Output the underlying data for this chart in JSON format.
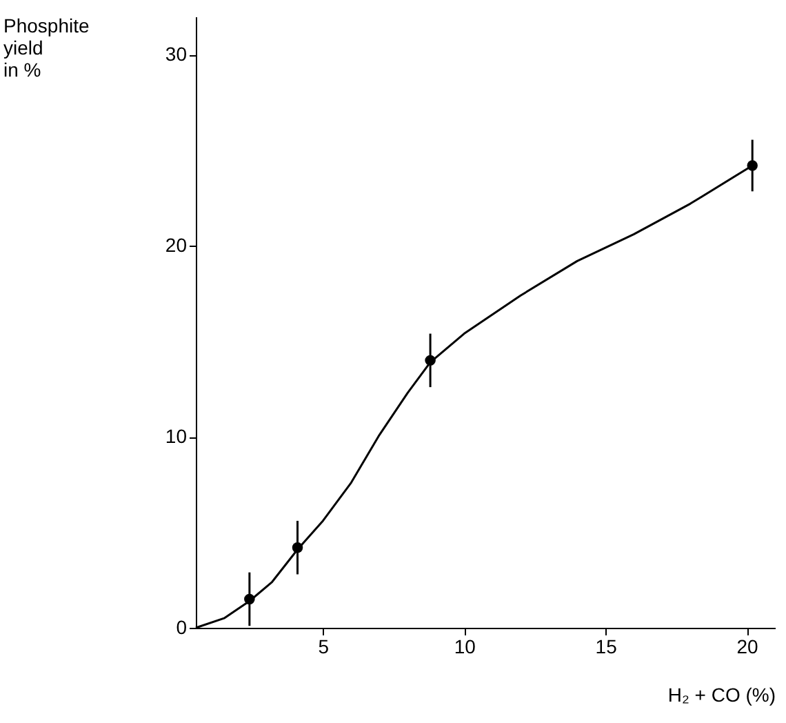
{
  "chart_data": {
    "type": "scatter",
    "xlabel": "H₂ + CO (%)",
    "ylabel": "Phosphite\nyield\nin %",
    "xlim": [
      0.5,
      21
    ],
    "xticks": [
      5,
      10,
      15,
      20
    ],
    "ylim": [
      0,
      32
    ],
    "yticks": [
      0,
      10,
      20,
      30
    ],
    "grid": false,
    "series": [
      {
        "color": "#000000",
        "marker": "circle",
        "x": [
          2.4,
          4.1,
          8.8,
          20.2
        ],
        "values": [
          1.5,
          4.2,
          14.0,
          24.2
        ],
        "errors": [
          1.4,
          1.4,
          1.4,
          1.35
        ]
      },
      {
        "type": "line",
        "color": "#000000",
        "marker": "none",
        "line_style": "solid",
        "x": [
          0.5,
          1.5,
          2.4,
          3.2,
          4.1,
          5,
          6,
          7,
          8,
          8.8,
          10,
          12,
          14,
          16,
          18,
          20.2
        ],
        "values": [
          0,
          0.5,
          1.4,
          2.4,
          4.1,
          5.6,
          7.6,
          10.1,
          12.3,
          13.9,
          15.4,
          17.4,
          19.2,
          20.6,
          22.2,
          24.2
        ]
      }
    ]
  }
}
